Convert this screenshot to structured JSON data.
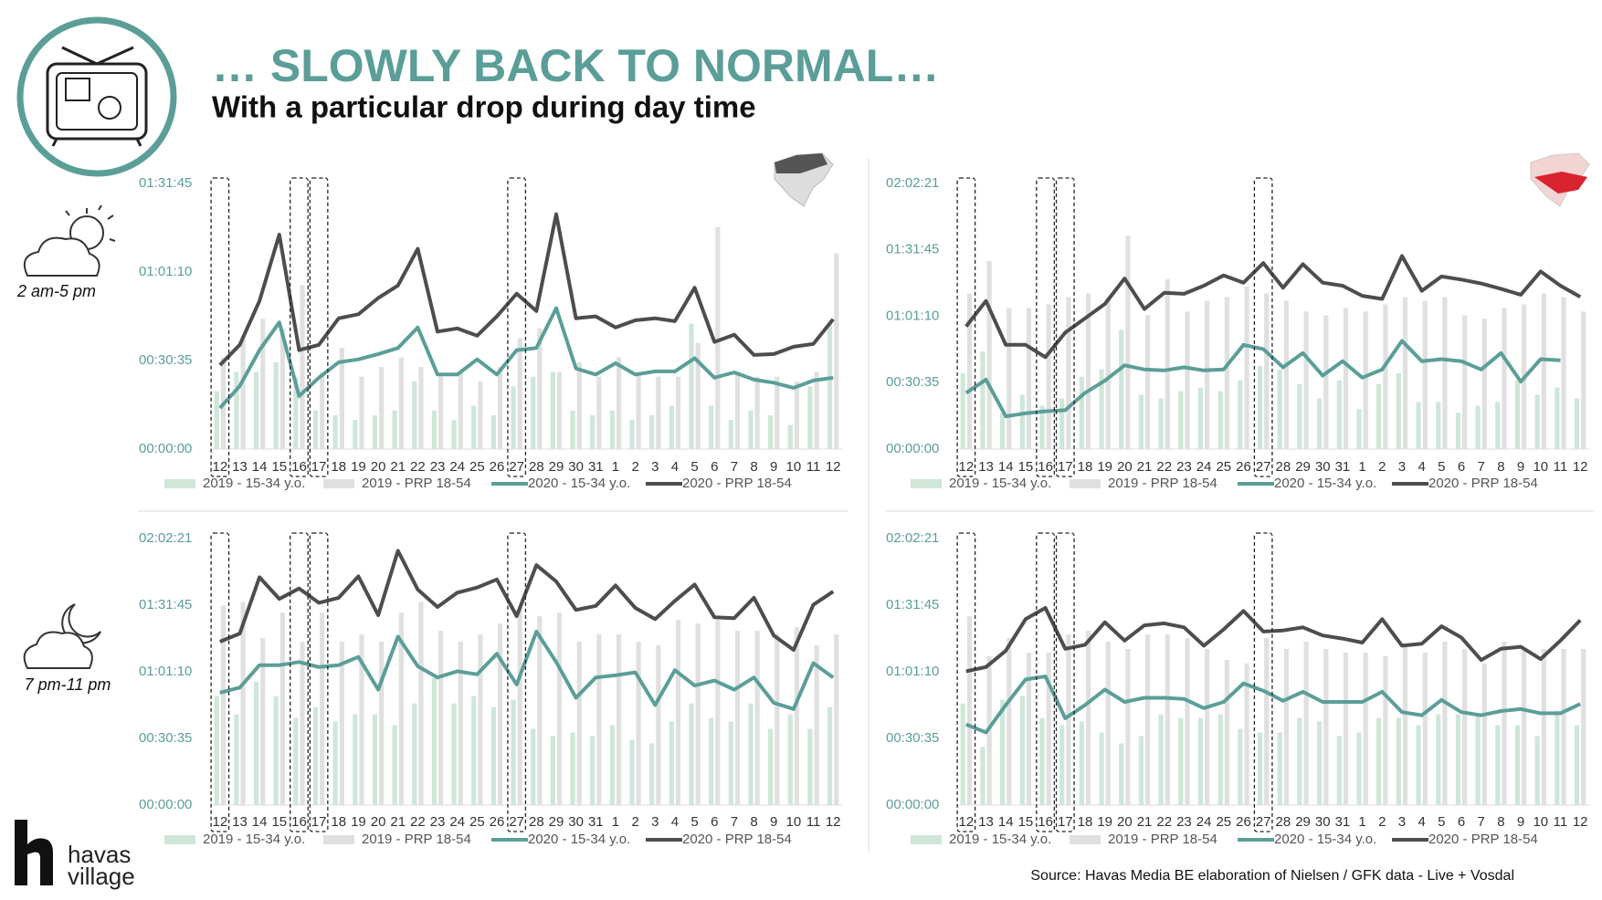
{
  "header": {
    "title": "… SLOWLY BACK TO NORMAL…",
    "subtitle": "With a particular drop during day time"
  },
  "row_labels": [
    "2 am-5 pm",
    "7 pm-11 pm"
  ],
  "logo": {
    "line1": "havas",
    "line2": "village"
  },
  "source": "Source: Havas Media BE elaboration of Nielsen / GFK data - Live + Vosdal",
  "chart_data": [
    {
      "type": "combo",
      "categories": [
        "12",
        "13",
        "14",
        "15",
        "16",
        "17",
        "18",
        "19",
        "20",
        "21",
        "22",
        "23",
        "24",
        "25",
        "26",
        "27",
        "28",
        "29",
        "30",
        "31",
        "1",
        "2",
        "3",
        "4",
        "5",
        "6",
        "7",
        "8",
        "9",
        "10",
        "11",
        "12"
      ],
      "ylim": [
        0,
        5505
      ],
      "yticks": [
        {
          "value": 0,
          "label": "00:00:00"
        },
        {
          "value": 1835,
          "label": "00:30:35"
        },
        {
          "value": 3670,
          "label": "01:01:10"
        },
        {
          "value": 5505,
          "label": "01:31:45"
        }
      ],
      "series": [
        {
          "name": "2019 - 15-34 y.o.",
          "type": "bar",
          "color": "#cfe6d8",
          "values": [
            1200,
            1600,
            1600,
            1800,
            1500,
            800,
            700,
            600,
            700,
            800,
            1400,
            800,
            600,
            900,
            700,
            1300,
            1500,
            1600,
            800,
            700,
            800,
            600,
            700,
            900,
            2600,
            900,
            600,
            800,
            700,
            500,
            1300,
            2600
          ]
        },
        {
          "name": "2019 - PRP 18-54",
          "type": "bar",
          "color": "#e0e0e0",
          "values": [
            1900,
            2300,
            2700,
            2500,
            3400,
            1600,
            2100,
            1500,
            1700,
            1900,
            1700,
            1500,
            1600,
            1400,
            1700,
            2300,
            2500,
            1600,
            1800,
            1500,
            1900,
            1600,
            1500,
            1500,
            2200,
            4600,
            1600,
            1500,
            1500,
            1400,
            1600,
            4060
          ]
        },
        {
          "name": "2020 - 15-34 y.o.",
          "type": "line",
          "color": "#5b9e98",
          "values": [
            850,
            1310,
            2050,
            2625,
            1100,
            1480,
            1800,
            1860,
            1970,
            2095,
            2520,
            1545,
            1545,
            1860,
            1545,
            2050,
            2095,
            2920,
            1670,
            1545,
            1780,
            1545,
            1610,
            1610,
            1885,
            1480,
            1590,
            1440,
            1375,
            1270,
            1420,
            1480
          ]
        },
        {
          "name": "2020 - PRP 18-54",
          "type": "line",
          "color": "#4d4d4d",
          "values": [
            1740,
            2160,
            3070,
            4445,
            2050,
            2160,
            2710,
            2795,
            3130,
            3390,
            4150,
            2435,
            2500,
            2350,
            2750,
            3220,
            2860,
            4870,
            2710,
            2750,
            2520,
            2670,
            2710,
            2650,
            3345,
            2220,
            2370,
            1950,
            1970,
            2120,
            2180,
            2690
          ]
        }
      ]
    },
    {
      "type": "combo",
      "categories": [
        "12",
        "13",
        "14",
        "15",
        "16",
        "17",
        "18",
        "19",
        "20",
        "21",
        "22",
        "23",
        "24",
        "25",
        "26",
        "27",
        "28",
        "29",
        "30",
        "31",
        "1",
        "2",
        "3",
        "4",
        "5",
        "6",
        "7",
        "8",
        "9",
        "10",
        "11",
        "12"
      ],
      "ylim": [
        0,
        7341
      ],
      "yticks": [
        {
          "value": 0,
          "label": "00:00:00"
        },
        {
          "value": 1835,
          "label": "00:30:35"
        },
        {
          "value": 3670,
          "label": "01:01:10"
        },
        {
          "value": 5505,
          "label": "01:31:45"
        },
        {
          "value": 7341,
          "label": "02:02:21"
        }
      ],
      "series": [
        {
          "name": "2019 - 15-34 y.o.",
          "type": "bar",
          "color": "#cfe6d8",
          "values": [
            2100,
            2700,
            1000,
            1500,
            1200,
            1400,
            2000,
            2200,
            3300,
            1500,
            1400,
            1600,
            1700,
            1600,
            1900,
            2300,
            2200,
            1800,
            1400,
            1900,
            1100,
            1800,
            2100,
            1300,
            1300,
            1000,
            1200,
            1300,
            1900,
            1500,
            1700,
            1400
          ]
        },
        {
          "name": "2019 - PRP 18-54",
          "type": "bar",
          "color": "#e0e0e0",
          "values": [
            4300,
            5200,
            3900,
            3900,
            4000,
            4200,
            4300,
            4200,
            5900,
            3700,
            4700,
            3800,
            4100,
            4200,
            4500,
            4300,
            4100,
            3800,
            3700,
            3900,
            3800,
            4000,
            4200,
            4100,
            4200,
            3700,
            3600,
            3900,
            4000,
            4300,
            4200,
            3800
          ]
        },
        {
          "name": "2020 - 15-34 y.o.",
          "type": "line",
          "color": "#5b9e98",
          "values": [
            1555,
            1920,
            905,
            990,
            1045,
            1075,
            1555,
            1890,
            2315,
            2200,
            2175,
            2260,
            2175,
            2200,
            2880,
            2765,
            2260,
            2655,
            2030,
            2430,
            1975,
            2200,
            2990,
            2430,
            2485,
            2430,
            2200,
            2655,
            1865,
            2485,
            2455,
            null
          ]
        },
        {
          "name": "2020 - PRP 18-54",
          "type": "line",
          "color": "#4d4d4d",
          "values": [
            3390,
            4095,
            2880,
            2880,
            2540,
            3220,
            3615,
            4010,
            4715,
            3870,
            4320,
            4290,
            4515,
            4800,
            4600,
            5140,
            4460,
            5110,
            4600,
            4515,
            4235,
            4150,
            5335,
            4375,
            4770,
            4685,
            4575,
            4430,
            4265,
            4910,
            4515,
            4205
          ]
        }
      ]
    },
    {
      "type": "combo",
      "categories": [
        "12",
        "13",
        "14",
        "15",
        "16",
        "17",
        "18",
        "19",
        "20",
        "21",
        "22",
        "23",
        "24",
        "25",
        "26",
        "27",
        "28",
        "29",
        "30",
        "31",
        "1",
        "2",
        "3",
        "4",
        "5",
        "6",
        "7",
        "8",
        "9",
        "10",
        "11",
        "12"
      ],
      "ylim": [
        0,
        7341
      ],
      "yticks": [
        {
          "value": 0,
          "label": "00:00:00"
        },
        {
          "value": 1835,
          "label": "00:30:35"
        },
        {
          "value": 3670,
          "label": "01:01:10"
        },
        {
          "value": 5505,
          "label": "01:31:45"
        },
        {
          "value": 7341,
          "label": "02:02:21"
        }
      ],
      "series": [
        {
          "name": "2019 - 15-34 y.o.",
          "type": "bar",
          "color": "#cfe6d8",
          "values": [
            3000,
            2500,
            3400,
            3000,
            2400,
            2700,
            2300,
            2500,
            2500,
            2200,
            2800,
            3500,
            2800,
            3000,
            2700,
            2900,
            2100,
            1900,
            2000,
            1900,
            2200,
            1800,
            1700,
            2300,
            2800,
            2400,
            2300,
            2800,
            2100,
            2500,
            2100,
            2700
          ]
        },
        {
          "name": "2019 - PRP 18-54",
          "type": "bar",
          "color": "#e0e0e0",
          "values": [
            5500,
            5600,
            4600,
            5300,
            4500,
            5300,
            4500,
            4700,
            4500,
            5300,
            5600,
            4800,
            4500,
            4700,
            5000,
            5400,
            5200,
            5300,
            4500,
            4700,
            4700,
            4500,
            4400,
            5100,
            5000,
            5100,
            4800,
            4800,
            4700,
            4900,
            4400,
            4700
          ]
        },
        {
          "name": "2020 - 15-34 y.o.",
          "type": "line",
          "color": "#5b9e98",
          "values": [
            3095,
            3235,
            3855,
            3855,
            3940,
            3800,
            3855,
            4080,
            3180,
            4640,
            3825,
            3515,
            3685,
            3600,
            4165,
            3320,
            4780,
            3940,
            2955,
            3515,
            3575,
            3655,
            2755,
            3715,
            3290,
            3430,
            3180,
            3515,
            2815,
            2645,
            3910,
            3515
          ]
        },
        {
          "name": "2020 - PRP 18-54",
          "type": "line",
          "color": "#4d4d4d",
          "values": [
            4500,
            4725,
            6275,
            5680,
            5965,
            5570,
            5710,
            6300,
            5230,
            7005,
            5935,
            5455,
            5850,
            5990,
            6215,
            5205,
            6610,
            6160,
            5375,
            5485,
            6050,
            5430,
            5120,
            5625,
            6075,
            5175,
            5150,
            5710,
            4670,
            4275,
            5515,
            5880
          ]
        }
      ]
    },
    {
      "type": "combo",
      "categories": [
        "12",
        "13",
        "14",
        "15",
        "16",
        "17",
        "18",
        "19",
        "20",
        "21",
        "22",
        "23",
        "24",
        "25",
        "26",
        "27",
        "28",
        "29",
        "30",
        "31",
        "1",
        "2",
        "3",
        "4",
        "5",
        "6",
        "7",
        "8",
        "9",
        "10",
        "11",
        "12"
      ],
      "ylim": [
        0,
        7341
      ],
      "yticks": [
        {
          "value": 0,
          "label": "00:00:00"
        },
        {
          "value": 1835,
          "label": "00:30:35"
        },
        {
          "value": 3670,
          "label": "01:01:10"
        },
        {
          "value": 5505,
          "label": "01:31:45"
        },
        {
          "value": 7341,
          "label": "02:02:21"
        }
      ],
      "series": [
        {
          "name": "2019 - 15-34 y.o.",
          "type": "bar",
          "color": "#cfe6d8",
          "values": [
            2800,
            1600,
            2900,
            3000,
            2400,
            2200,
            2300,
            2000,
            1700,
            1900,
            2500,
            2400,
            2400,
            2500,
            2100,
            2000,
            2000,
            2400,
            2300,
            1900,
            2000,
            2400,
            2400,
            2200,
            2500,
            2500,
            2500,
            2200,
            2200,
            1900,
            2600,
            2200
          ]
        },
        {
          "name": "2019 - PRP 18-54",
          "type": "bar",
          "color": "#e0e0e0",
          "values": [
            5200,
            4100,
            4600,
            4200,
            4200,
            4700,
            4800,
            4500,
            4300,
            4700,
            4700,
            4600,
            4300,
            4000,
            3900,
            4600,
            4300,
            4500,
            4300,
            4200,
            4200,
            4100,
            4400,
            4200,
            4500,
            4300,
            3900,
            4500,
            4300,
            4300,
            4300,
            4300
          ]
        },
        {
          "name": "2020 - 15-34 y.o.",
          "type": "line",
          "color": "#5b9e98",
          "values": [
            2220,
            2000,
            2755,
            3460,
            3545,
            2390,
            2755,
            3180,
            2840,
            2955,
            2955,
            2925,
            2670,
            2840,
            3350,
            3150,
            2870,
            3120,
            2840,
            2840,
            2840,
            3120,
            2560,
            2475,
            2895,
            2560,
            2475,
            2590,
            2645,
            2530,
            2530,
            2785
          ]
        },
        {
          "name": "2020 - PRP 18-54",
          "type": "line",
          "color": "#4d4d4d",
          "values": [
            3685,
            3800,
            4250,
            5120,
            5430,
            4305,
            4415,
            5035,
            4530,
            4950,
            5005,
            4895,
            4390,
            4840,
            5345,
            4780,
            4810,
            4895,
            4670,
            4585,
            4475,
            5120,
            4390,
            4445,
            4925,
            4615,
            3995,
            4305,
            4360,
            4020,
            4530,
            5090
          ]
        }
      ]
    }
  ]
}
